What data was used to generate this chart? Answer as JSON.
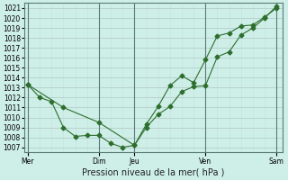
{
  "title": "Pression niveau de la mer( hPa )",
  "bg_color": "#ceeee8",
  "grid_major_color": "#b0c8c4",
  "grid_minor_color": "#c8e0dc",
  "line_color": "#2d6e2d",
  "ylim": [
    1006.5,
    1021.5
  ],
  "yticks": [
    1007,
    1008,
    1009,
    1010,
    1011,
    1012,
    1013,
    1014,
    1015,
    1016,
    1017,
    1018,
    1019,
    1020,
    1021
  ],
  "xtick_labels": [
    "Mer",
    "Dim",
    "Jeu",
    "Ven",
    "Sam"
  ],
  "xtick_positions": [
    0,
    6,
    9,
    15,
    21
  ],
  "vline_positions": [
    0,
    6,
    9,
    15,
    21
  ],
  "series1_x": [
    0,
    1,
    2,
    3,
    4,
    5,
    6,
    7,
    8,
    9,
    10,
    11,
    12,
    13,
    14,
    15,
    16,
    17,
    18,
    19,
    20,
    21
  ],
  "series1_y": [
    1013.3,
    1012.0,
    1011.6,
    1009.0,
    1008.1,
    1008.2,
    1008.2,
    1007.4,
    1007.0,
    1007.2,
    1009.0,
    1010.3,
    1011.1,
    1012.6,
    1013.1,
    1013.2,
    1016.1,
    1016.6,
    1018.3,
    1019.0,
    1020.0,
    1021.2
  ],
  "series2_x": [
    0,
    3,
    6,
    9,
    10,
    11,
    12,
    13,
    14,
    15,
    16,
    17,
    18,
    19,
    20,
    21
  ],
  "series2_y": [
    1013.3,
    1011.0,
    1009.5,
    1007.2,
    1009.3,
    1011.1,
    1013.2,
    1014.2,
    1013.5,
    1015.8,
    1018.2,
    1018.5,
    1019.2,
    1019.3,
    1020.1,
    1021.0
  ],
  "markersize": 2.5,
  "linewidth": 0.8,
  "tick_fontsize": 5.5,
  "xlabel_fontsize": 7.0
}
